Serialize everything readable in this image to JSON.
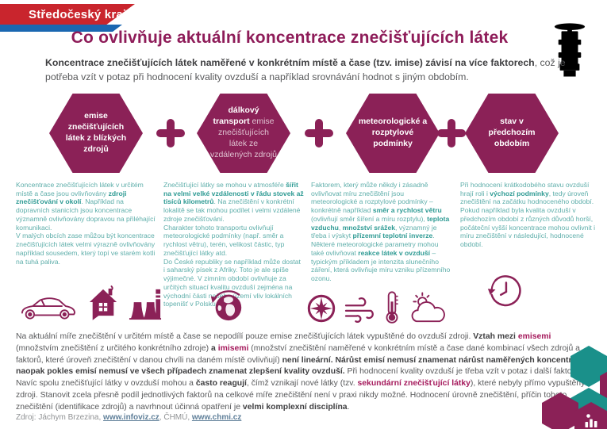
{
  "banner": {
    "label": "Středočeský kraj"
  },
  "title": "Co ovlivňuje aktuální koncentrace znečišťujících látek",
  "intro": [
    {
      "t": "Koncentrace znečišťujících látek naměřené v konkrétním místě a čase (tzv. imise) závisí na více faktorech",
      "s": "b"
    },
    {
      "t": ", což je potřeba vzít v potaz při hodnocení kvality ovzduší a například srovnávání hodnot s jiným obdobím.",
      "s": "n"
    }
  ],
  "hexagons": [
    {
      "text": [
        {
          "t": "emise znečišťujících látek z blízkých zdrojů",
          "s": "b"
        }
      ]
    },
    {
      "text": [
        {
          "t": "dálkový transport",
          "s": "b"
        },
        {
          "t": " emise znečišťujících látek ze vzdálených zdrojů",
          "s": "n"
        }
      ]
    },
    {
      "text": [
        {
          "t": "meteorologické a rozptylové podmínky",
          "s": "b"
        }
      ]
    },
    {
      "text": [
        {
          "t": "stav v předchozím obdobím",
          "s": "b"
        }
      ]
    }
  ],
  "columns": [
    {
      "text": [
        {
          "t": "Koncentrace znečišťujících látek v určitém místě a čase jsou ovlivňovány ",
          "s": "n"
        },
        {
          "t": "zdroji znečišťování v okolí",
          "s": "b"
        },
        {
          "t": ". Například na dopravních stanicích jsou koncentrace významně ovlivňovány dopravou na přiléhající komunikaci.\nV malých obcích zase můžou být koncentrace znečišťujících látek velmi výrazně ovlivňovány například sousedem, který topí ve starém kotli na tuhá paliva.",
          "s": "n"
        }
      ],
      "icons": [
        "car-icon",
        "house-icon",
        "factory-icon"
      ]
    },
    {
      "text": [
        {
          "t": "Znečišťující látky se mohou v atmosféře ",
          "s": "n"
        },
        {
          "t": "šířit na velmi velké vzdálenosti v řádu stovek až tisíců kilometrů",
          "s": "b"
        },
        {
          "t": ". Na znečištění v konkrétní lokalitě se tak mohou podílet i velmi vzdálené zdroje znečišťování.\nCharakter tohoto transportu ovlivňují meteorologické podmínky (např. směr a rychlost větru), terén, velikost částic, typ znečišťující látky atd.\nDo České republiky se například může dostat i saharský písek z Afriky. Toto je ale spíše výjimečné. V zimním období ovlivňuje za určitých situací kvalitu ovzduší zejména na východní části našeho území vliv lokálních topenišť v Polsku.",
          "s": "n"
        }
      ],
      "icons": [
        "globe-transport-icon"
      ]
    },
    {
      "text": [
        {
          "t": "Faktorem, který může někdy i zásadně ovlivňovat míru znečištění jsou meteorologické a rozptylové podmínky – konkrétně například ",
          "s": "n"
        },
        {
          "t": "směr a rychlost větru",
          "s": "b"
        },
        {
          "t": " (ovlivňují směr šíření a míru rozptylu), ",
          "s": "n"
        },
        {
          "t": "teplota vzduchu",
          "s": "b"
        },
        {
          "t": ", ",
          "s": "n"
        },
        {
          "t": "množství srážek",
          "s": "b"
        },
        {
          "t": ", významný je třeba i výskyt ",
          "s": "n"
        },
        {
          "t": "přízemní teplotní inverze",
          "s": "b"
        },
        {
          "t": ".\nNěkteré meteorologické parametry mohou také ovlivňovat ",
          "s": "n"
        },
        {
          "t": "reakce látek v ovzduší",
          "s": "b"
        },
        {
          "t": " – typickým příkladem je intenzita slunečního záření, která ovlivňuje míru vzniku přízemního ozonu.",
          "s": "n"
        }
      ],
      "icons": [
        "compass-icon",
        "wind-icon",
        "thermometer-icon",
        "sun-cloud-icon"
      ]
    },
    {
      "text": [
        {
          "t": "Při hodnocení krátkodobého stavu ovzduší hrají roli i ",
          "s": "n"
        },
        {
          "t": "výchozí podmínky",
          "s": "b"
        },
        {
          "t": ", tedy úroveň znečištění na začátku hodnoceného období. Pokud například byla kvalita ovzduší v předchozím období z různých důvodů horší, počáteční vyšší koncentrace mohou ovlivnit i míru znečištění v následující, hodnocené období.",
          "s": "n"
        }
      ],
      "icons": [
        "history-clock-icon"
      ]
    }
  ],
  "footer": [
    {
      "t": "Na aktuální míře znečištění v určitém místě a čase se nepodílí pouze emise znečišťujících látek vypuštěné do ovzduší zdroji. ",
      "s": "n"
    },
    {
      "t": "Vztah mezi ",
      "s": "b"
    },
    {
      "t": "emisemi",
      "s": "a"
    },
    {
      "t": " (množstvím znečištění z určitého konkrétního zdroje) ",
      "s": "n"
    },
    {
      "t": "a ",
      "s": "b"
    },
    {
      "t": "imisemi",
      "s": "a"
    },
    {
      "t": " (množství znečištění naměřené v konkrétním místě a čase dané kombinací všech zdrojů a faktorů, které úroveň znečištění v danou chvíli na daném místě ovlivňují) ",
      "s": "n"
    },
    {
      "t": "není lineární. Nárůst emisí nemusí znamenat nárůst naměřených koncentrací, a naopak pokles emisí nemusí ve všech případech znamenat zlepšení kvality ovzduší.",
      "s": "b"
    },
    {
      "t": " Při hodnocení kvality ovzduší je třeba vzít v potaz i další faktory. Navíc spolu znečišťující látky v ovzduší mohou a ",
      "s": "n"
    },
    {
      "t": "často reagují",
      "s": "b"
    },
    {
      "t": ", čímž vznikají nové látky (tzv. ",
      "s": "n"
    },
    {
      "t": "sekundární znečišťující látky",
      "s": "a"
    },
    {
      "t": "), které nebyly přímo vypuštěny zdroji. Stanovit zcela přesně podíl jednotlivých faktorů na celkové míře znečištění není v praxi nikdy možné. Hodnocení úrovně znečištění, příčin tohoto znečištění (identifikace zdrojů) a navrhnout účinná opatření je ",
      "s": "n"
    },
    {
      "t": "velmi komplexní disciplína",
      "s": "b"
    },
    {
      "t": ".",
      "s": "n"
    }
  ],
  "source": [
    {
      "t": "Zdroj: Jáchym Brzezina, ",
      "s": "n"
    },
    {
      "t": "www.infoviz.cz",
      "s": "l"
    },
    {
      "t": ", ČHMÚ, ",
      "s": "n"
    },
    {
      "t": "www.chmi.cz",
      "s": "l"
    }
  ],
  "colors": {
    "magenta": "#8b2157",
    "accent_magenta": "#a51a5c",
    "banner_red": "#c9252d",
    "banner_blue": "#1a67b1",
    "teal_text": "#5eaeaa",
    "teal_bold": "#2f9b94",
    "teal_hex": "#1a908a",
    "body_gray": "#58595b"
  }
}
